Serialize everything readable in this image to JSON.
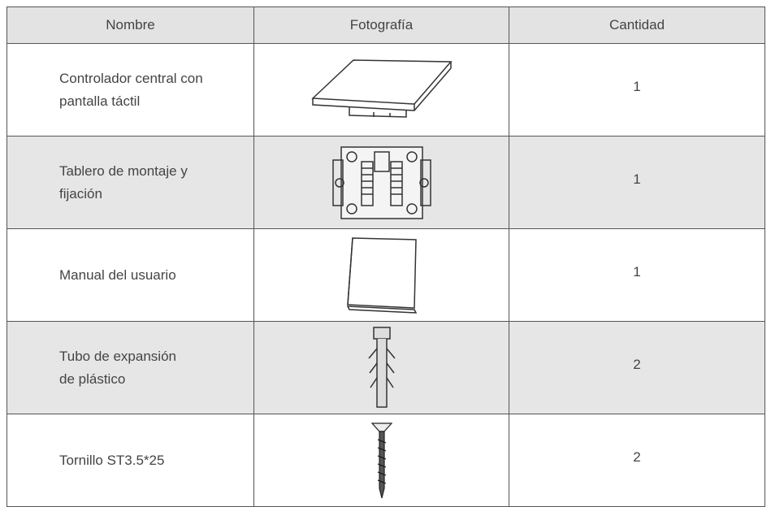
{
  "table": {
    "header": [
      "Nombre",
      "Fotografía",
      "Cantidad"
    ],
    "rows": [
      {
        "name": [
          "Controlador central con",
          "pantalla táctil"
        ],
        "quantity": 1
      },
      {
        "name": [
          "Tablero de montaje y",
          "fijación"
        ],
        "quantity": 1
      },
      {
        "name": [
          "Manual del usuario"
        ],
        "quantity": 1
      },
      {
        "name": [
          "Tubo de expansión",
          "de plástico"
        ],
        "quantity": 2
      },
      {
        "name": [
          "Tornillo ST3.5*25"
        ],
        "quantity": 2
      }
    ]
  }
}
